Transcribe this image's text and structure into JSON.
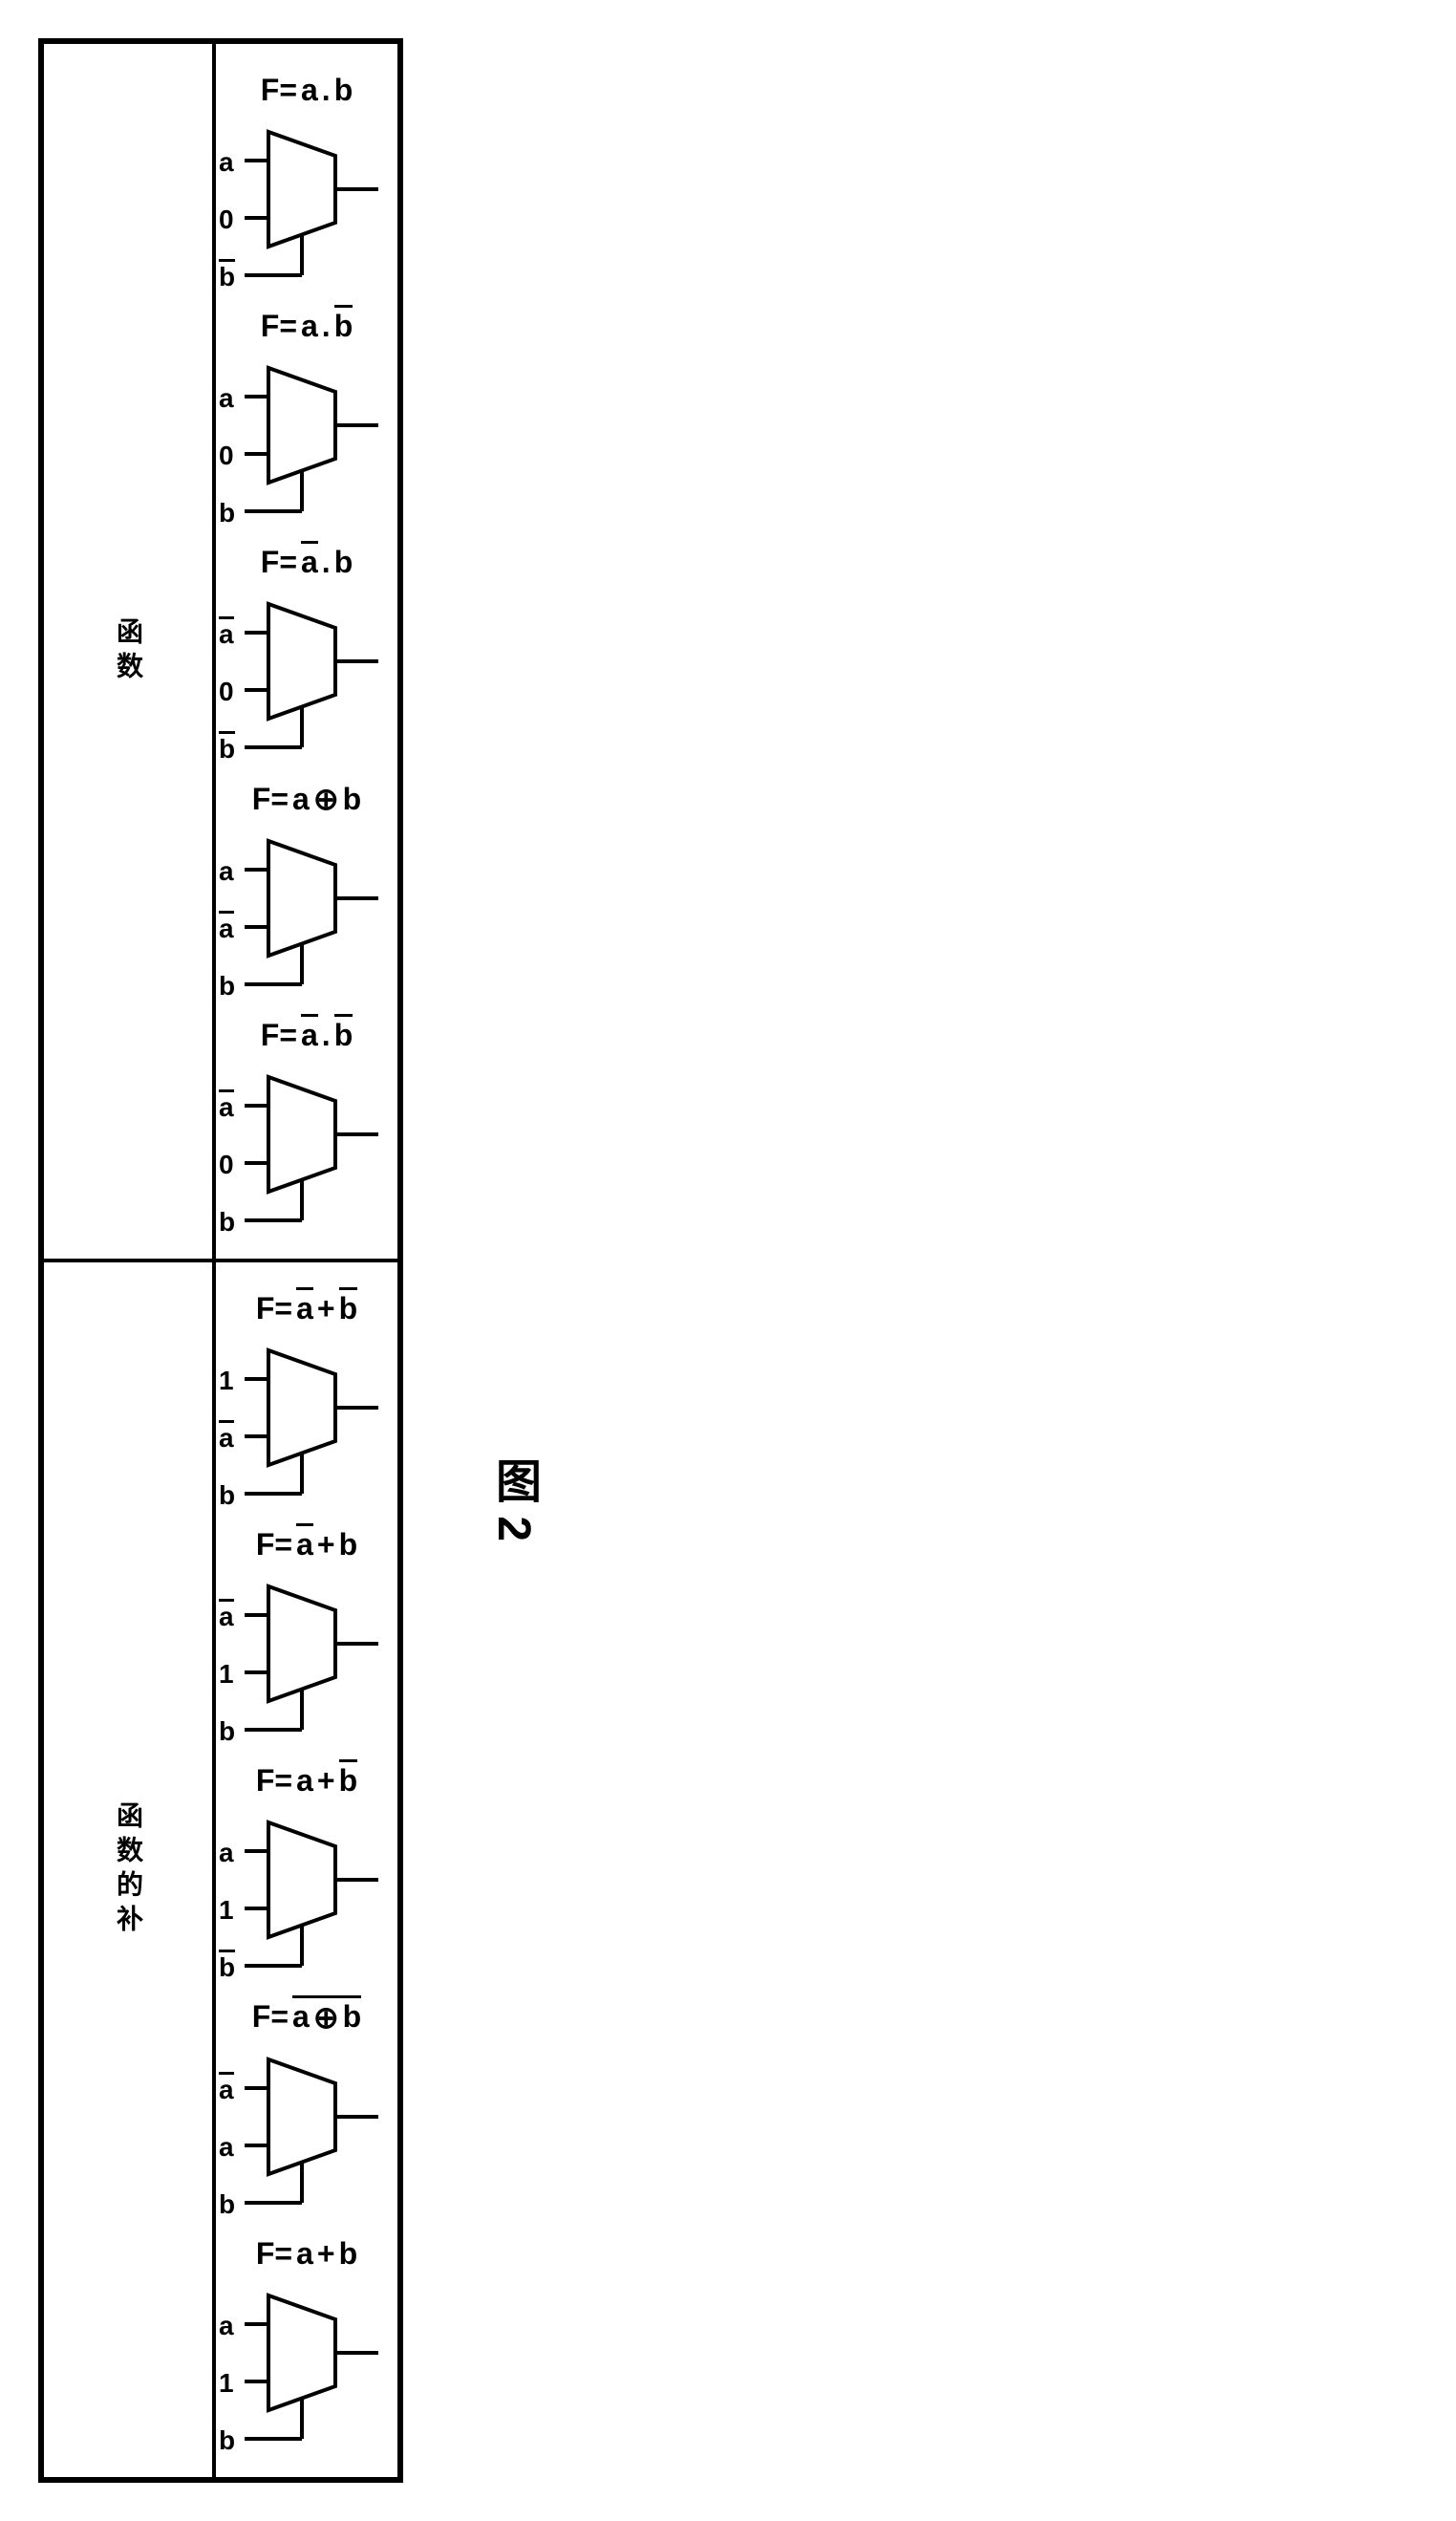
{
  "figure_label": "图 2",
  "rows": [
    {
      "header": "函数",
      "muxes": [
        {
          "formula_parts": [
            {
              "t": "F=",
              "bar": false
            },
            {
              "t": "a",
              "bar": false
            },
            {
              "t": ".",
              "bar": false
            },
            {
              "t": "b",
              "bar": false
            }
          ],
          "in0": "a",
          "in0_bar": false,
          "in1": "0",
          "in1_bar": false,
          "sel": "b",
          "sel_bar": true
        },
        {
          "formula_parts": [
            {
              "t": "F=",
              "bar": false
            },
            {
              "t": "a",
              "bar": false
            },
            {
              "t": ".",
              "bar": false
            },
            {
              "t": "b",
              "bar": true
            }
          ],
          "in0": "a",
          "in0_bar": false,
          "in1": "0",
          "in1_bar": false,
          "sel": "b",
          "sel_bar": false
        },
        {
          "formula_parts": [
            {
              "t": "F=",
              "bar": false
            },
            {
              "t": "a",
              "bar": true
            },
            {
              "t": ".",
              "bar": false
            },
            {
              "t": "b",
              "bar": false
            }
          ],
          "in0": "a",
          "in0_bar": true,
          "in1": "0",
          "in1_bar": false,
          "sel": "b",
          "sel_bar": true
        },
        {
          "formula_parts": [
            {
              "t": "F=",
              "bar": false
            },
            {
              "t": "a",
              "bar": false
            },
            {
              "t": "⊕",
              "bar": false
            },
            {
              "t": "b",
              "bar": false
            }
          ],
          "in0": "a",
          "in0_bar": false,
          "in1": "a",
          "in1_bar": true,
          "sel": "b",
          "sel_bar": false
        },
        {
          "formula_parts": [
            {
              "t": "F=",
              "bar": false
            },
            {
              "t": "a",
              "bar": true
            },
            {
              "t": ".",
              "bar": false
            },
            {
              "t": "b",
              "bar": true
            }
          ],
          "in0": "a",
          "in0_bar": true,
          "in1": "0",
          "in1_bar": false,
          "sel": "b",
          "sel_bar": false
        }
      ]
    },
    {
      "header": "函数的补",
      "muxes": [
        {
          "formula_parts": [
            {
              "t": "F=",
              "bar": false
            },
            {
              "t": "a",
              "bar": true
            },
            {
              "t": "+",
              "bar": false
            },
            {
              "t": "b",
              "bar": true
            }
          ],
          "in0": "1",
          "in0_bar": false,
          "in1": "a",
          "in1_bar": true,
          "sel": "b",
          "sel_bar": false
        },
        {
          "formula_parts": [
            {
              "t": "F=",
              "bar": false
            },
            {
              "t": "a",
              "bar": true
            },
            {
              "t": "+",
              "bar": false
            },
            {
              "t": "b",
              "bar": false
            }
          ],
          "in0": "a",
          "in0_bar": true,
          "in1": "1",
          "in1_bar": false,
          "sel": "b",
          "sel_bar": false
        },
        {
          "formula_parts": [
            {
              "t": "F=",
              "bar": false
            },
            {
              "t": "a",
              "bar": false
            },
            {
              "t": "+",
              "bar": false
            },
            {
              "t": "b",
              "bar": true
            }
          ],
          "in0": "a",
          "in0_bar": false,
          "in1": "1",
          "in1_bar": false,
          "sel": "b",
          "sel_bar": true
        },
        {
          "formula_parts": [
            {
              "t": "F=",
              "bar": false
            }
          ],
          "longbar_parts": [
            {
              "t": "a"
            },
            {
              "t": "⊕"
            },
            {
              "t": "b"
            }
          ],
          "in0": "a",
          "in0_bar": true,
          "in1": "a",
          "in1_bar": false,
          "sel": "b",
          "sel_bar": false
        },
        {
          "formula_parts": [
            {
              "t": "F=",
              "bar": false
            },
            {
              "t": "a",
              "bar": false
            },
            {
              "t": "+",
              "bar": false
            },
            {
              "t": "b",
              "bar": false
            }
          ],
          "in0": "a",
          "in0_bar": false,
          "in1": "1",
          "in1_bar": false,
          "sel": "b",
          "sel_bar": false
        }
      ]
    }
  ],
  "styling": {
    "border_color": "#000000",
    "border_width": 4,
    "font_size_formula": 32,
    "font_size_label": 28,
    "font_size_header": 28,
    "font_weight": "bold",
    "background": "#ffffff",
    "mux_stroke": "#000000",
    "mux_stroke_width": 4
  }
}
